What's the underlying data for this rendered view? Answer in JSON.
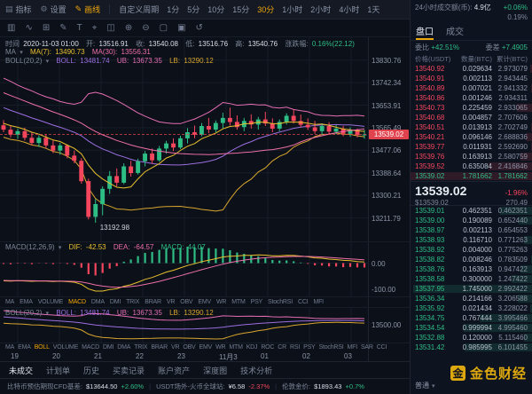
{
  "colors": {
    "up": "#2ebd85",
    "down": "#f5465d",
    "accent": "#f0a70a",
    "ma7": "#e8c02e",
    "ma30": "#ee6fa8",
    "boll_mid": "#9b6ee0",
    "boll_ub": "#e56eb4",
    "boll_lb": "#d9a62e",
    "price_tag": "#e0434e",
    "gold": "#e9b10e"
  },
  "topbar": {
    "indicators": "指标",
    "settings": "设置",
    "draw": "画线",
    "custom_period": "自定义周期",
    "periods": [
      "自定义周期",
      "1分",
      "5分",
      "10分",
      "15分",
      "30分",
      "1小时",
      "2小时",
      "4小时",
      "1天"
    ],
    "active_period": "30分",
    "window_mode": "单窗口"
  },
  "toolbar2": {
    "icons": [
      {
        "name": "candle-style-icon",
        "glyph": "▥"
      },
      {
        "name": "line-chart-icon",
        "glyph": "∿"
      },
      {
        "name": "grid-layout-icon",
        "glyph": "⊞"
      },
      {
        "name": "draw-tool-icon",
        "glyph": "✎"
      },
      {
        "name": "text-tool-icon",
        "glyph": "T"
      },
      {
        "name": "crosshair-icon",
        "glyph": "⌖"
      },
      {
        "name": "compare-icon",
        "glyph": "◫"
      },
      {
        "name": "zoom-in-icon",
        "glyph": "⊕"
      },
      {
        "name": "zoom-out-icon",
        "glyph": "⊖"
      },
      {
        "name": "fullscreen-icon",
        "glyph": "▢"
      },
      {
        "name": "screenshot-icon",
        "glyph": "▣"
      },
      {
        "name": "undo-icon",
        "glyph": "↺"
      }
    ]
  },
  "chart": {
    "info": {
      "time_label": "时间",
      "time": "2020-11-03 01:00",
      "open_label": "开:",
      "open": "13516.91",
      "close_label": "收:",
      "close": "13540.08",
      "low_label": "低:",
      "low": "13516.76",
      "high_label": "高:",
      "high": "13540.76",
      "change_label": "涨跌幅:",
      "change": "0.16%(22.12)"
    },
    "ma_legend": {
      "title": "MA",
      "ma7_label": "MA(7):",
      "ma7": "13490.73",
      "ma30_label": "MA(30):",
      "ma30": "13556.31"
    },
    "boll_legend": {
      "title": "BOLL(20,2)",
      "mid_label": "BOLL:",
      "mid": "13481.74",
      "ub_label": "UB:",
      "ub": "13673.35",
      "lb_label": "LB:",
      "lb": "13290.12"
    },
    "macd_legend": {
      "title": "MACD(12,26,9)",
      "dif_label": "DIF:",
      "dif": "-42.53",
      "dea_label": "DEA:",
      "dea": "-64.57",
      "macd_label": "MACD:",
      "macd": "44.07"
    },
    "low_label": "13192.98",
    "current_price": "13539.02",
    "y_ticks": [
      "13830.76",
      "13742.34",
      "13653.91",
      "13565.49",
      "13477.06",
      "13388.64",
      "13300.21",
      "13211.79"
    ],
    "macd_ticks": [
      "0.00",
      "-100.00"
    ],
    "boll_tick": "13500.00",
    "time_ticks": [
      "19",
      "20",
      "21",
      "22",
      "23",
      "11月3",
      "01",
      "02",
      "03"
    ],
    "tabs1": {
      "items": [
        "MA",
        "EMA",
        "VOLUME",
        "MACD",
        "DMA",
        "DMI",
        "TRIX",
        "BRAR",
        "VR",
        "OBV",
        "EMV",
        "WR",
        "MTM",
        "PSY",
        "StochRSI",
        "CCI",
        "MFI"
      ],
      "active": "MACD"
    },
    "tabs2": {
      "items": [
        "MA",
        "EMA",
        "BOLL",
        "VOLUME",
        "MACD",
        "DMI",
        "DMA",
        "TRIX",
        "BRAR",
        "VR",
        "OBV",
        "EMV",
        "WR",
        "MTM",
        "KDJ",
        "ROC",
        "CR",
        "RSI",
        "PSY",
        "StochRSI",
        "MFI",
        "SAR",
        "CCI"
      ],
      "active": "BOLL"
    }
  },
  "chart_data": {
    "type": "candlestick",
    "interval": "30分",
    "y_range": [
      13120,
      13920
    ],
    "current_price": 13539.02,
    "low_annotation": 13192.98,
    "overlays": [
      "MA(7)",
      "MA(30)",
      "BOLL(20,2)"
    ],
    "panes": [
      "MACD(12,26,9)",
      "BOLL(20,2)"
    ],
    "prior_closes": [
      13888,
      13876,
      13862,
      13851,
      13842,
      13830,
      13815,
      13800,
      13788,
      13775,
      13762,
      13750,
      13738,
      13724,
      13712,
      13700,
      13688,
      13675,
      13662,
      13650,
      13640,
      13630,
      13622,
      13612,
      13602,
      13594,
      13588,
      13582,
      13578,
      13576
    ],
    "candles": [
      [
        13575,
        13595,
        13548,
        13558
      ],
      [
        13558,
        13572,
        13528,
        13538
      ],
      [
        13538,
        13562,
        13522,
        13552
      ],
      [
        13552,
        13566,
        13516,
        13526
      ],
      [
        13526,
        13546,
        13496,
        13506
      ],
      [
        13506,
        13536,
        13490,
        13526
      ],
      [
        13526,
        13540,
        13486,
        13496
      ],
      [
        13496,
        13516,
        13466,
        13476
      ],
      [
        13476,
        13506,
        13460,
        13496
      ],
      [
        13496,
        13501,
        13446,
        13456
      ],
      [
        13456,
        13476,
        13426,
        13436
      ],
      [
        13436,
        13446,
        13346,
        13356
      ],
      [
        13356,
        13366,
        13206,
        13216
      ],
      [
        13216,
        13286,
        13192.98,
        13266
      ],
      [
        13266,
        13336,
        13222,
        13326
      ],
      [
        13326,
        13396,
        13306,
        13376
      ],
      [
        13376,
        13406,
        13336,
        13350
      ],
      [
        13350,
        13426,
        13344,
        13414
      ],
      [
        13414,
        13436,
        13374,
        13388
      ],
      [
        13388,
        13444,
        13382,
        13434
      ],
      [
        13434,
        13474,
        13414,
        13464
      ],
      [
        13464,
        13484,
        13424,
        13438
      ],
      [
        13438,
        13494,
        13432,
        13484
      ],
      [
        13484,
        13514,
        13464,
        13504
      ],
      [
        13504,
        13524,
        13474,
        13488
      ],
      [
        13488,
        13534,
        13482,
        13524
      ],
      [
        13524,
        13564,
        13504,
        13548
      ],
      [
        13548,
        13574,
        13524,
        13538
      ],
      [
        13538,
        13584,
        13532,
        13572
      ],
      [
        13572,
        13604,
        13544,
        13558
      ],
      [
        13558,
        13594,
        13548,
        13584
      ],
      [
        13584,
        13624,
        13564,
        13604
      ],
      [
        13604,
        13644,
        13574,
        13588
      ],
      [
        13588,
        13614,
        13558,
        13568
      ],
      [
        13568,
        13604,
        13552,
        13592
      ],
      [
        13592,
        13618,
        13562,
        13578
      ],
      [
        13578,
        13608,
        13558,
        13598
      ],
      [
        13598,
        13628,
        13572,
        13582
      ],
      [
        13582,
        13602,
        13548,
        13562
      ],
      [
        13562,
        13598,
        13552,
        13588
      ],
      [
        13588,
        13622,
        13578,
        13612
      ],
      [
        13612,
        13637,
        13582,
        13592
      ],
      [
        13592,
        13617,
        13567,
        13577
      ],
      [
        13577,
        13602,
        13557,
        13567
      ],
      [
        13567,
        13592,
        13542,
        13552
      ],
      [
        13552,
        13582,
        13537,
        13572
      ],
      [
        13572,
        13587,
        13542,
        13550
      ],
      [
        13550,
        13577,
        13540,
        13562
      ],
      [
        13562,
        13572,
        13532,
        13542
      ],
      [
        13542,
        13567,
        13530,
        13557
      ],
      [
        13557,
        13562,
        13527,
        13537
      ],
      [
        13537,
        13557,
        13522,
        13539.02
      ]
    ]
  },
  "orderbook": {
    "stats": {
      "vol_label": "24小时成交额(币):",
      "vol": "4.9亿",
      "change_5m": "+0.06%",
      "amplitude": "0.19%"
    },
    "tabs": {
      "book": "盘口",
      "trades": "成交",
      "active": "盘口"
    },
    "ratio": {
      "weibi_label": "委比",
      "weibi": "+42.51%",
      "weicha_label": "委差",
      "weicha": "+7.4905"
    },
    "headers": [
      "价格(USDT)",
      "数量(BTC)",
      "累计(BTC)"
    ],
    "asks": [
      [
        "13540.92",
        "0.029634",
        "2.973079"
      ],
      [
        "13540.91",
        "0.002113",
        "2.943445"
      ],
      [
        "13540.89",
        "0.007021",
        "2.941332"
      ],
      [
        "13540.86",
        "0.001246",
        "2.934311"
      ],
      [
        "13540.73",
        "0.225459",
        "2.933065"
      ],
      [
        "13540.68",
        "0.004857",
        "2.707606"
      ],
      [
        "13540.51",
        "0.013913",
        "2.702749"
      ],
      [
        "13540.21",
        "0.096146",
        "2.688836"
      ],
      [
        "13539.77",
        "0.011931",
        "2.592690"
      ],
      [
        "13539.76",
        "0.163913",
        "2.580759"
      ],
      [
        "13539.52",
        "0.635084",
        "2.416846"
      ],
      [
        "13539.02",
        "1.781662",
        "1.781662",
        "up"
      ]
    ],
    "mid": {
      "price": "13539.02",
      "change": "-1.96%",
      "usd": "$13539.02",
      "extra": "270.49"
    },
    "bids": [
      [
        "13539.01",
        "0.462351",
        "0.462351"
      ],
      [
        "13539.00",
        "0.190089",
        "0.652440"
      ],
      [
        "13538.97",
        "0.002113",
        "0.654553"
      ],
      [
        "13538.93",
        "0.116710",
        "0.771263"
      ],
      [
        "13538.92",
        "0.004000",
        "0.775263"
      ],
      [
        "13538.82",
        "0.008246",
        "0.783509"
      ],
      [
        "13538.76",
        "0.163913",
        "0.947422"
      ],
      [
        "13538.58",
        "0.300000",
        "1.247422"
      ],
      [
        "13537.95",
        "1.745000",
        "2.992422"
      ],
      [
        "13536.34",
        "0.214166",
        "3.206588"
      ],
      [
        "13535.92",
        "0.021434",
        "3.228022"
      ],
      [
        "13534.75",
        "0.767444",
        "3.995466"
      ],
      [
        "13534.54",
        "0.999994",
        "4.995460"
      ],
      [
        "13532.88",
        "0.120000",
        "5.115460"
      ],
      [
        "13531.42",
        "0.985995",
        "6.101455"
      ]
    ],
    "mode": "普通"
  },
  "bottom_tabs": {
    "items": [
      "未成交",
      "计划单",
      "历史",
      "买卖记录",
      "账户资产",
      "深度图",
      "技术分析"
    ],
    "active": "未成交"
  },
  "status_bar": {
    "items": [
      {
        "label": "比特币预估期现CFD基差:",
        "value": "$13644.50",
        "change": "+2.60%",
        "dir": "up"
      },
      {
        "label": "USDT场外-火币全球站:",
        "value": "¥6.58",
        "change": "-2.37%",
        "dir": "down"
      },
      {
        "label": "伦敦金价:",
        "value": "$1893.43",
        "change": "+0.7%",
        "dir": "up"
      }
    ]
  },
  "watermark": {
    "logo_char": "金",
    "text": "金色财经"
  }
}
